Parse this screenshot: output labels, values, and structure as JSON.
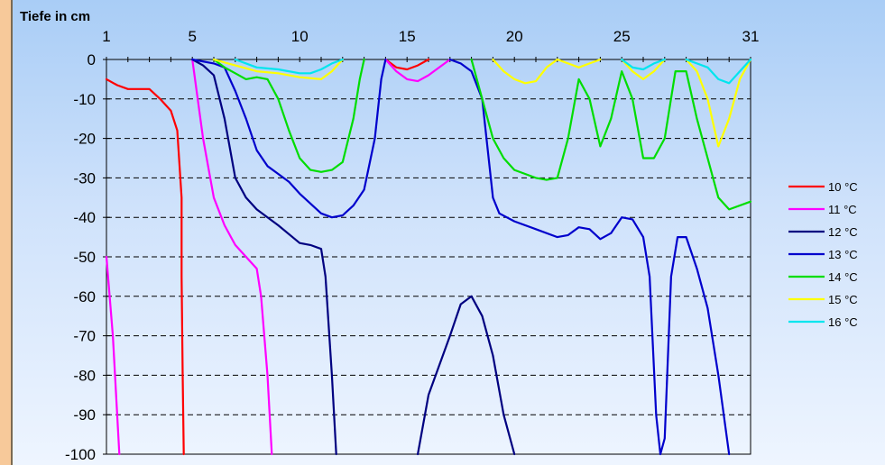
{
  "chart_data": {
    "type": "line",
    "title": "",
    "ylabel": "Tiefe in cm",
    "xlabel": "",
    "xlim": [
      1,
      31
    ],
    "ylim": [
      -100,
      0
    ],
    "x_ticks": [
      1,
      5,
      10,
      15,
      20,
      25,
      31
    ],
    "y_ticks": [
      0,
      -10,
      -20,
      -30,
      -40,
      -50,
      -60,
      -70,
      -80,
      -90,
      -100
    ],
    "grid": "horizontal dashed",
    "legend_position": "right",
    "series": [
      {
        "name": "10 °C",
        "color": "#ff0000",
        "segments": [
          [
            [
              1,
              -5
            ],
            [
              1.5,
              -6.5
            ],
            [
              2,
              -7.5
            ],
            [
              2.5,
              -7.5
            ],
            [
              3,
              -7.5
            ],
            [
              3.5,
              -10
            ],
            [
              4,
              -13
            ],
            [
              4.3,
              -18
            ],
            [
              4.5,
              -35
            ],
            [
              4.5,
              -55
            ],
            [
              4.55,
              -80
            ],
            [
              4.6,
              -100
            ]
          ],
          [
            [
              14,
              0
            ],
            [
              14.5,
              -2
            ],
            [
              15,
              -2.5
            ],
            [
              15.5,
              -1.5
            ],
            [
              16,
              0
            ]
          ]
        ]
      },
      {
        "name": "11 °C",
        "color": "#ff00ff",
        "segments": [
          [
            [
              1,
              -50
            ],
            [
              1.3,
              -70
            ],
            [
              1.6,
              -100
            ]
          ],
          [
            [
              5,
              0
            ],
            [
              5.5,
              -20
            ],
            [
              6,
              -35
            ],
            [
              6.5,
              -42
            ],
            [
              7,
              -47
            ],
            [
              7.5,
              -50
            ],
            [
              8,
              -53
            ],
            [
              8.2,
              -60
            ],
            [
              8.5,
              -80
            ],
            [
              8.7,
              -100
            ]
          ],
          [
            [
              14,
              0
            ],
            [
              14.5,
              -3
            ],
            [
              15,
              -5
            ],
            [
              15.5,
              -5.5
            ],
            [
              16,
              -4
            ],
            [
              17,
              0
            ]
          ]
        ]
      },
      {
        "name": "12 °C",
        "color": "#000080",
        "segments": [
          [
            [
              5,
              0
            ],
            [
              5.5,
              -1.5
            ],
            [
              6,
              -4
            ],
            [
              6.5,
              -15
            ],
            [
              7,
              -30
            ],
            [
              7.5,
              -35
            ],
            [
              8,
              -38
            ],
            [
              9,
              -42
            ],
            [
              10,
              -46.5
            ],
            [
              10.5,
              -47
            ],
            [
              11,
              -48
            ],
            [
              11.2,
              -55
            ],
            [
              11.5,
              -80
            ],
            [
              11.7,
              -100
            ]
          ],
          [
            [
              15.5,
              -100
            ],
            [
              16,
              -85
            ],
            [
              17,
              -70
            ],
            [
              17.5,
              -62
            ],
            [
              18,
              -60
            ],
            [
              18.5,
              -65
            ],
            [
              19,
              -75
            ],
            [
              19.5,
              -90
            ],
            [
              20,
              -100
            ]
          ]
        ]
      },
      {
        "name": "13 °C",
        "color": "#0000cc",
        "segments": [
          [
            [
              5,
              0
            ],
            [
              6,
              -1
            ],
            [
              6.5,
              -2
            ],
            [
              7,
              -8
            ],
            [
              7.5,
              -15
            ],
            [
              8,
              -23
            ],
            [
              8.5,
              -27
            ],
            [
              9,
              -29
            ],
            [
              9.5,
              -31
            ],
            [
              10,
              -34
            ],
            [
              11,
              -39
            ],
            [
              11.5,
              -40
            ],
            [
              12,
              -39.5
            ],
            [
              12.5,
              -37
            ],
            [
              13,
              -33
            ],
            [
              13.5,
              -20
            ],
            [
              13.8,
              -5
            ],
            [
              14,
              0
            ]
          ],
          [
            [
              17,
              0
            ],
            [
              17.5,
              -1
            ],
            [
              18,
              -3
            ],
            [
              18.5,
              -10
            ],
            [
              19,
              -35
            ],
            [
              19.3,
              -39
            ],
            [
              20,
              -41
            ],
            [
              21,
              -43
            ],
            [
              22,
              -45
            ],
            [
              22.5,
              -44.5
            ],
            [
              23,
              -42.5
            ],
            [
              23.5,
              -43
            ],
            [
              24,
              -45.5
            ],
            [
              24.5,
              -44
            ],
            [
              25,
              -40
            ],
            [
              25.5,
              -40.5
            ],
            [
              26,
              -45
            ],
            [
              26.3,
              -55
            ],
            [
              26.6,
              -90
            ],
            [
              26.8,
              -100
            ],
            [
              27,
              -96
            ],
            [
              27.3,
              -55
            ],
            [
              27.6,
              -45
            ],
            [
              28,
              -45
            ],
            [
              28.5,
              -53
            ],
            [
              29,
              -63
            ],
            [
              29.5,
              -80
            ],
            [
              30,
              -100
            ]
          ]
        ]
      },
      {
        "name": "14 °C",
        "color": "#00dd00",
        "segments": [
          [
            [
              6,
              0
            ],
            [
              6.5,
              -2
            ],
            [
              7,
              -3.5
            ],
            [
              7.5,
              -5
            ],
            [
              8,
              -4.5
            ],
            [
              8.5,
              -5
            ],
            [
              9,
              -10
            ],
            [
              9.5,
              -18
            ],
            [
              10,
              -25
            ],
            [
              10.5,
              -28
            ],
            [
              11,
              -28.5
            ],
            [
              11.5,
              -28
            ],
            [
              12,
              -26
            ],
            [
              12.5,
              -15
            ],
            [
              12.8,
              -5
            ],
            [
              13,
              0
            ]
          ],
          [
            [
              18,
              0
            ],
            [
              18.5,
              -10
            ],
            [
              19,
              -20
            ],
            [
              19.5,
              -25
            ],
            [
              20,
              -28
            ],
            [
              21,
              -30
            ],
            [
              21.5,
              -30.5
            ],
            [
              22,
              -30
            ],
            [
              22.5,
              -20
            ],
            [
              23,
              -5
            ],
            [
              23.5,
              -10
            ],
            [
              24,
              -22
            ],
            [
              24.5,
              -15
            ],
            [
              25,
              -3
            ],
            [
              25.5,
              -10
            ],
            [
              26,
              -25
            ],
            [
              26.5,
              -25
            ],
            [
              27,
              -20
            ],
            [
              27.5,
              -3
            ],
            [
              28,
              -3
            ],
            [
              28.5,
              -15
            ],
            [
              29,
              -25
            ],
            [
              29.5,
              -35
            ],
            [
              30,
              -38
            ],
            [
              31,
              -36
            ]
          ]
        ]
      },
      {
        "name": "15 °C",
        "color": "#ffff00",
        "segments": [
          [
            [
              6,
              0
            ],
            [
              7,
              -1.5
            ],
            [
              8,
              -3
            ],
            [
              9,
              -3.5
            ],
            [
              10,
              -4.5
            ],
            [
              11,
              -5
            ],
            [
              11.5,
              -3
            ],
            [
              12,
              0
            ]
          ],
          [
            [
              19,
              0
            ],
            [
              19.5,
              -3
            ],
            [
              20,
              -5
            ],
            [
              20.5,
              -6
            ],
            [
              21,
              -5.5
            ],
            [
              21.5,
              -2
            ],
            [
              22,
              0
            ],
            [
              22.5,
              -1
            ],
            [
              23,
              -2
            ],
            [
              23.5,
              -1
            ],
            [
              24,
              0
            ]
          ],
          [
            [
              25,
              0
            ],
            [
              25.5,
              -3
            ],
            [
              26,
              -5
            ],
            [
              26.5,
              -3
            ],
            [
              27,
              0
            ]
          ],
          [
            [
              28,
              0
            ],
            [
              28.5,
              -3
            ],
            [
              29,
              -10
            ],
            [
              29.5,
              -22
            ],
            [
              30,
              -15
            ],
            [
              30.5,
              -5
            ],
            [
              31,
              0
            ]
          ]
        ]
      },
      {
        "name": "16 °C",
        "color": "#00e5ee",
        "segments": [
          [
            [
              7,
              0
            ],
            [
              8,
              -2
            ],
            [
              9,
              -2.5
            ],
            [
              10,
              -3.5
            ],
            [
              10.5,
              -3.5
            ],
            [
              11,
              -2.5
            ],
            [
              11.5,
              -1
            ],
            [
              12,
              0
            ]
          ],
          [
            [
              25,
              0
            ],
            [
              25.5,
              -2
            ],
            [
              26,
              -2.5
            ],
            [
              26.5,
              -1
            ],
            [
              27,
              0
            ]
          ],
          [
            [
              28,
              0
            ],
            [
              28.5,
              -1
            ],
            [
              29,
              -2
            ],
            [
              29.5,
              -5
            ],
            [
              30,
              -6
            ],
            [
              30.5,
              -3
            ],
            [
              31,
              0
            ]
          ]
        ]
      }
    ]
  }
}
